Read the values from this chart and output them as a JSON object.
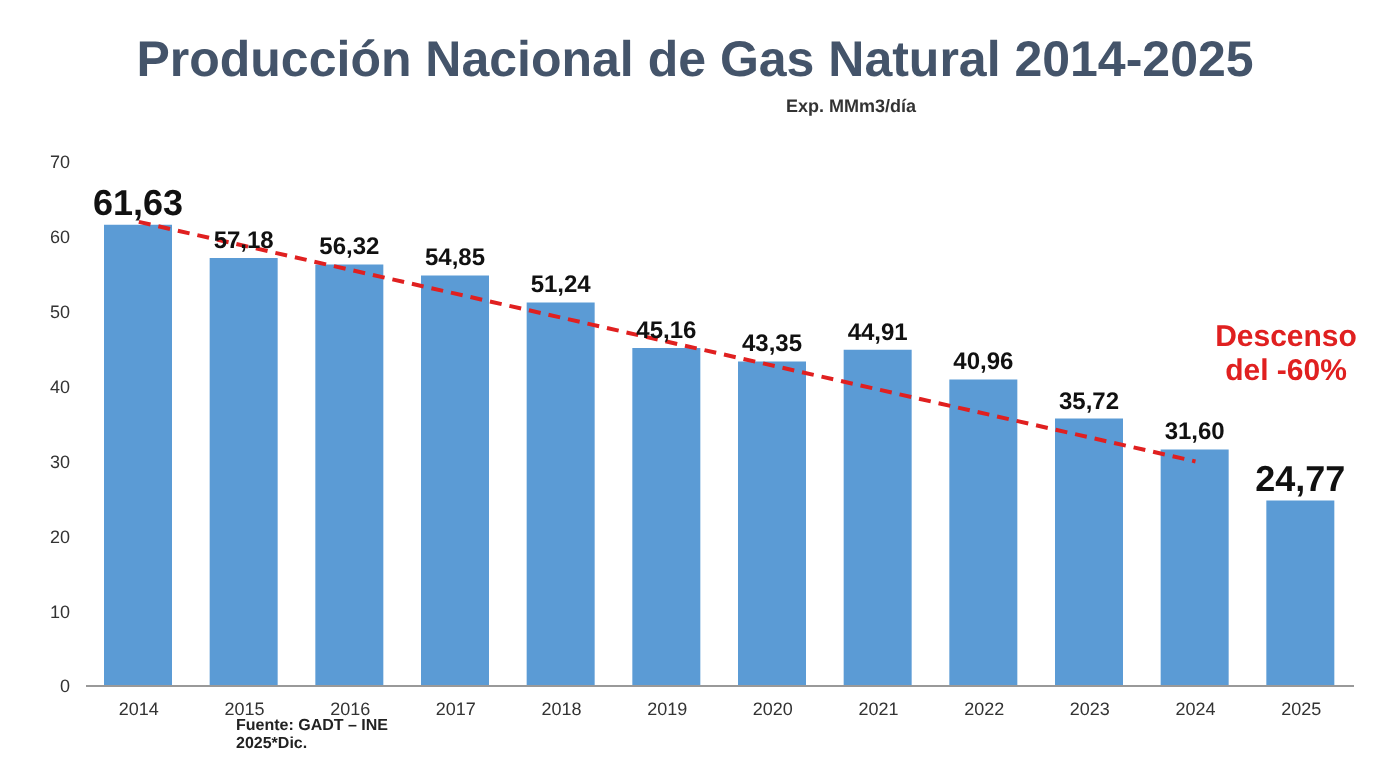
{
  "chart_data": {
    "type": "bar",
    "title": "Producción Nacional de Gas Natural 2014-2025",
    "subtitle": "Exp. MMm3/día",
    "categories": [
      "2014",
      "2015",
      "2016",
      "2017",
      "2018",
      "2019",
      "2020",
      "2021",
      "2022",
      "2023",
      "2024",
      "2025"
    ],
    "series": [
      {
        "color": "#5b9bd5",
        "values": [
          61.63,
          57.18,
          56.32,
          54.85,
          51.24,
          45.16,
          43.35,
          44.91,
          40.96,
          35.72,
          31.6,
          24.77
        ],
        "value_labels": [
          "61,63",
          "57,18",
          "56,32",
          "54,85",
          "51,24",
          "45,16",
          "43,35",
          "44,91",
          "40,96",
          "35,72",
          "31,60",
          "24,77"
        ]
      },
      {
        "type": "line",
        "color": "#e02020",
        "line_style": "dashed",
        "marker": "none",
        "values": [
          62,
          null,
          null,
          null,
          null,
          null,
          null,
          null,
          null,
          null,
          30,
          null
        ]
      }
    ],
    "ylim": [
      0,
      70
    ],
    "yticks": [
      0,
      10,
      20,
      30,
      40,
      50,
      60,
      70
    ],
    "annotations": [
      "Descenso del -60%",
      "Fuente: GADT – INE",
      "2025*Dic."
    ]
  }
}
